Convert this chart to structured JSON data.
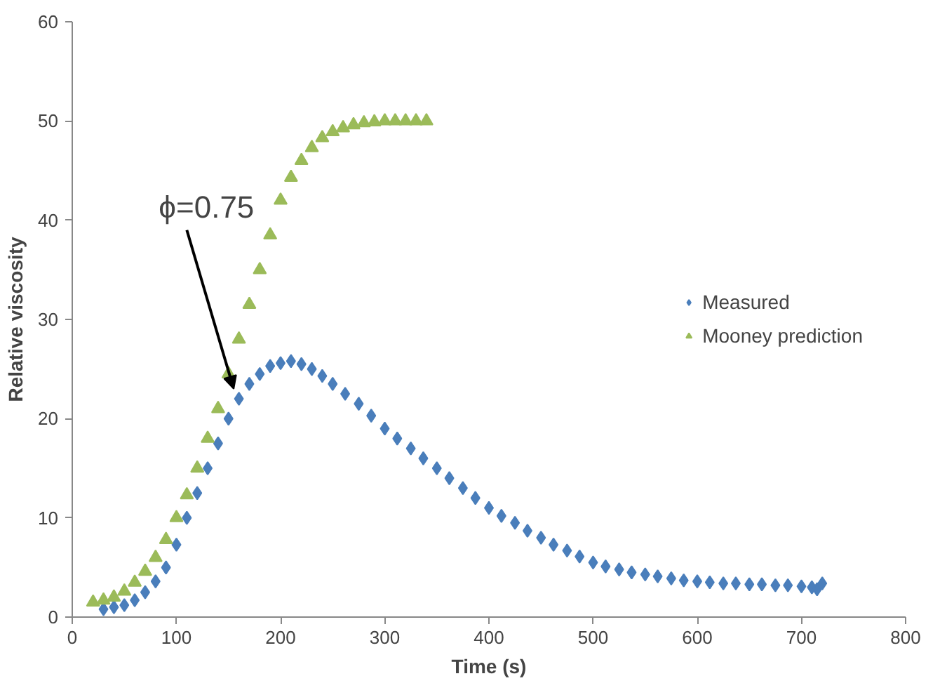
{
  "chart_data": {
    "type": "scatter",
    "xlabel": "Time (s)",
    "ylabel": "Relative viscosity",
    "xlim": [
      0,
      800
    ],
    "ylim": [
      0,
      60
    ],
    "xticks": [
      0,
      100,
      200,
      300,
      400,
      500,
      600,
      700,
      800
    ],
    "yticks": [
      0,
      10,
      20,
      30,
      40,
      50,
      60
    ],
    "grid": false,
    "legend": "right",
    "series": [
      {
        "name": "Measured",
        "color": "#4a7ebb",
        "marker": "diamond",
        "x": [
          30,
          40,
          50,
          60,
          70,
          80,
          90,
          100,
          110,
          120,
          130,
          140,
          150,
          160,
          170,
          180,
          190,
          200,
          210,
          220,
          230,
          240,
          250,
          262,
          275,
          287,
          300,
          312,
          325,
          337,
          350,
          362,
          375,
          387,
          400,
          412,
          425,
          437,
          450,
          462,
          475,
          487,
          500,
          512,
          525,
          537,
          550,
          562,
          575,
          587,
          600,
          612,
          625,
          637,
          650,
          662,
          675,
          687,
          700,
          710,
          715,
          720
        ],
        "values": [
          0.8,
          1,
          1.2,
          1.7,
          2.5,
          3.6,
          5,
          7.3,
          10,
          12.5,
          15,
          17.5,
          20,
          22,
          23.5,
          24.5,
          25.3,
          25.6,
          25.8,
          25.5,
          25,
          24.3,
          23.5,
          22.5,
          21.5,
          20.3,
          19,
          18,
          17,
          16,
          15,
          14,
          13,
          12,
          11,
          10.2,
          9.5,
          8.7,
          8,
          7.3,
          6.7,
          6.1,
          5.5,
          5.1,
          4.8,
          4.5,
          4.3,
          4.1,
          3.9,
          3.7,
          3.6,
          3.5,
          3.4,
          3.4,
          3.3,
          3.3,
          3.2,
          3.2,
          3.1,
          3,
          2.8,
          3.4
        ]
      },
      {
        "name": "Mooney prediction",
        "color": "#9bbb59",
        "marker": "triangle",
        "x": [
          20,
          30,
          40,
          50,
          60,
          70,
          80,
          90,
          100,
          110,
          120,
          130,
          140,
          150,
          160,
          170,
          180,
          190,
          200,
          210,
          220,
          230,
          240,
          250,
          260,
          270,
          280,
          290,
          300,
          310,
          320,
          330,
          340
        ],
        "values": [
          1.5,
          1.7,
          2,
          2.6,
          3.5,
          4.6,
          6,
          7.8,
          10,
          12.3,
          15,
          18,
          21,
          24.5,
          28,
          31.5,
          35,
          38.5,
          42,
          44.3,
          46,
          47.3,
          48.3,
          48.9,
          49.3,
          49.6,
          49.8,
          49.9,
          50,
          50,
          50,
          50,
          50
        ]
      }
    ],
    "annotations": [
      {
        "text": "ϕ=0.75",
        "x": 155,
        "y": 23
      }
    ]
  }
}
